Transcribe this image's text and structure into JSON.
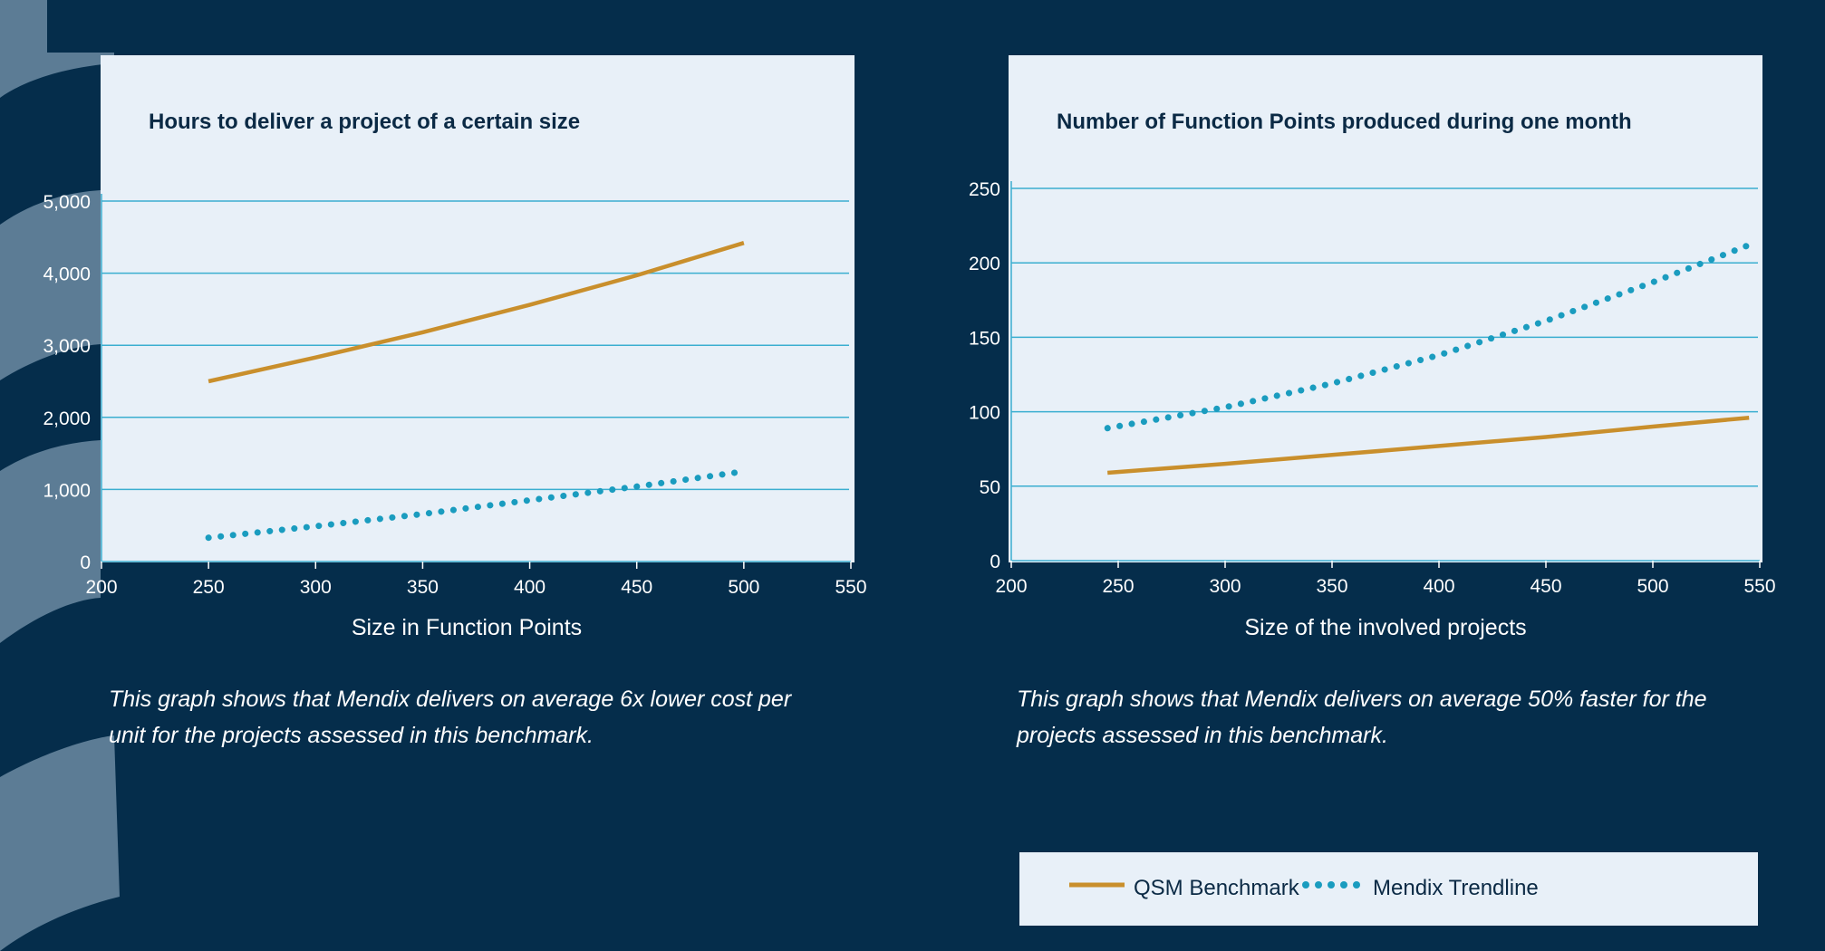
{
  "colors": {
    "background": "#052d4b",
    "panel": "#e8f0f8",
    "qsm": "#c98f2c",
    "mendix": "#1a9cbf",
    "gridline": "#3aaed0",
    "title_text": "#0b2a45"
  },
  "legend": {
    "qsm_label": "QSM Benchmark",
    "mendix_label": "Mendix Trendline"
  },
  "chart_data": [
    {
      "type": "line",
      "title": "Hours to deliver a project of a certain size",
      "xlabel": "Size in Function Points",
      "ylabel": "",
      "xlim": [
        200,
        550
      ],
      "ylim": [
        0,
        5000
      ],
      "x_ticks": [
        200,
        250,
        300,
        350,
        400,
        450,
        500,
        550
      ],
      "x_tick_labels": [
        "200",
        "250",
        "300",
        "350",
        "400",
        "450",
        "500",
        "550"
      ],
      "y_ticks": [
        0,
        1000,
        2000,
        3000,
        4000,
        5000
      ],
      "y_tick_labels": [
        "0",
        "1,000",
        "2,000",
        "3,000",
        "4,000",
        "5,000"
      ],
      "grid": true,
      "series": [
        {
          "name": "QSM Benchmark",
          "style": "solid",
          "color": "#c98f2c",
          "x": [
            250,
            300,
            350,
            400,
            450,
            500
          ],
          "y": [
            2500,
            2830,
            3180,
            3560,
            3970,
            4420
          ]
        },
        {
          "name": "Mendix Trendline",
          "style": "dotted",
          "color": "#1a9cbf",
          "x": [
            250,
            300,
            350,
            400,
            450,
            500
          ],
          "y": [
            330,
            490,
            660,
            850,
            1040,
            1250
          ]
        }
      ],
      "caption": "This graph shows that Mendix delivers on average 6x lower cost per unit for the projects assessed in this benchmark."
    },
    {
      "type": "line",
      "title": "Number of Function Points produced during one month",
      "xlabel": "Size of the involved projects",
      "ylabel": "",
      "xlim": [
        200,
        550
      ],
      "ylim": [
        0,
        250
      ],
      "x_ticks": [
        200,
        250,
        300,
        350,
        400,
        450,
        500,
        550
      ],
      "x_tick_labels": [
        "200",
        "250",
        "300",
        "350",
        "400",
        "450",
        "500",
        "550"
      ],
      "y_ticks": [
        0,
        50,
        100,
        150,
        200,
        250
      ],
      "y_tick_labels": [
        "0",
        "50",
        "100",
        "150",
        "200",
        "250"
      ],
      "grid": true,
      "series": [
        {
          "name": "QSM Benchmark",
          "style": "solid",
          "color": "#c98f2c",
          "x": [
            245,
            300,
            350,
            400,
            450,
            500,
            545
          ],
          "y": [
            59,
            65,
            71,
            77,
            83,
            90,
            96
          ]
        },
        {
          "name": "Mendix Trendline",
          "style": "dotted",
          "color": "#1a9cbf",
          "x": [
            245,
            300,
            350,
            400,
            450,
            500,
            545
          ],
          "y": [
            89,
            103,
            119,
            138,
            161,
            187,
            212
          ]
        }
      ],
      "caption": "This graph shows that Mendix delivers on average 50% faster for the projects assessed in this benchmark."
    }
  ]
}
